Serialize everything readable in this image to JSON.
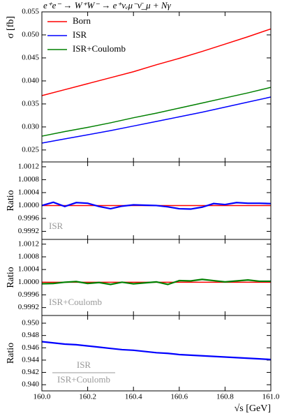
{
  "chart_data": [
    {
      "type": "line",
      "title": "e⁺e⁻ → W⁺W⁻ → e⁺νₑμ⁻ν̄_μ + Nγ",
      "ylabel": "σ [fb]",
      "x": [
        160.0,
        160.1,
        160.2,
        160.3,
        160.4,
        160.5,
        160.6,
        160.7,
        160.8,
        160.9,
        161.0
      ],
      "series": [
        {
          "name": "Born",
          "color": "#ff0000",
          "values": [
            0.0368,
            0.0381,
            0.0394,
            0.0407,
            0.042,
            0.0435,
            0.0449,
            0.0464,
            0.048,
            0.0496,
            0.0513
          ]
        },
        {
          "name": "ISR",
          "color": "#0000ff",
          "values": [
            0.0265,
            0.0274,
            0.0283,
            0.0292,
            0.0302,
            0.0312,
            0.0322,
            0.0332,
            0.0343,
            0.0354,
            0.0365
          ]
        },
        {
          "name": "ISR+Coulomb",
          "color": "#008000",
          "values": [
            0.028,
            0.029,
            0.0299,
            0.0309,
            0.032,
            0.033,
            0.0341,
            0.0352,
            0.0363,
            0.0374,
            0.0386
          ]
        }
      ],
      "xlim": [
        160.0,
        161.0
      ],
      "ylim": [
        0.0224,
        0.055
      ],
      "yticks": [
        0.025,
        {
          "value": 0.03,
          "label": "0.030"
        },
        0.035,
        {
          "value": 0.04,
          "label": "0.040"
        },
        0.045,
        {
          "value": 0.05,
          "label": "0.050"
        },
        0.055
      ],
      "legend": "upper left"
    },
    {
      "type": "line",
      "ylabel": "Ratio",
      "label": "ISR",
      "x": [
        160.0,
        160.05,
        160.1,
        160.15,
        160.2,
        160.25,
        160.3,
        160.35,
        160.4,
        160.45,
        160.5,
        160.55,
        160.6,
        160.65,
        160.7,
        160.75,
        160.8,
        160.85,
        160.9,
        160.95,
        161.0
      ],
      "series": [
        {
          "color": "#0000ff",
          "values": [
            1.0,
            1.0001,
            0.99997,
            1.00009,
            1.00007,
            0.99997,
            0.9999,
            0.99998,
            1.00002,
            1.00001,
            1.0,
            0.99996,
            0.9999,
            0.99989,
            0.99995,
            1.00006,
            1.00003,
            1.00009,
            1.00007,
            1.00007,
            1.00006
          ]
        }
      ],
      "reference_line": {
        "value": 1,
        "color": "#ff0000"
      },
      "xlim": [
        160.0,
        161.0
      ],
      "ylim": [
        0.99895,
        1.00135
      ],
      "yticks": [
        0.9992,
        0.9996,
        {
          "value": 1,
          "label": "1.0000"
        },
        1.0004,
        1.0008,
        1.0012
      ]
    },
    {
      "type": "line",
      "ylabel": "Ratio",
      "label": "ISR+Coulomb",
      "x": [
        160.0,
        160.05,
        160.1,
        160.15,
        160.2,
        160.25,
        160.3,
        160.35,
        160.4,
        160.45,
        160.5,
        160.55,
        160.6,
        160.65,
        160.7,
        160.75,
        160.8,
        160.85,
        160.9,
        160.95,
        161.0
      ],
      "series": [
        {
          "color": "#008000",
          "values": [
            0.99995,
            0.99996,
            1.0,
            1.00002,
            0.99996,
            0.99999,
            0.99993,
            1.0,
            0.99995,
            0.99998,
            1.00001,
            0.99993,
            1.00005,
            1.00004,
            1.00009,
            1.00005,
            1.00001,
            1.00004,
            1.00007,
            1.00003,
            1.00003
          ]
        }
      ],
      "reference_line": {
        "value": 1,
        "color": "#ff0000"
      },
      "xlim": [
        160.0,
        161.0
      ],
      "ylim": [
        0.99895,
        1.00135
      ],
      "yticks": [
        0.9992,
        0.9996,
        {
          "value": 1,
          "label": "1.0000"
        },
        1.0004,
        1.0008,
        1.0012
      ]
    },
    {
      "type": "line",
      "ylabel": "Ratio",
      "label_numerator": "ISR",
      "label_denominator": "ISR+Coulomb",
      "xlabel": "√s [GeV]",
      "x": [
        160.0,
        160.05,
        160.1,
        160.15,
        160.2,
        160.25,
        160.3,
        160.35,
        160.4,
        160.45,
        160.5,
        160.55,
        160.6,
        160.65,
        160.7,
        160.75,
        160.8,
        160.85,
        160.9,
        160.95,
        161.0
      ],
      "series": [
        {
          "color": "#0000ff",
          "values": [
            0.947,
            0.9468,
            0.9466,
            0.9465,
            0.9463,
            0.9461,
            0.9459,
            0.9457,
            0.9456,
            0.9454,
            0.9452,
            0.9451,
            0.9449,
            0.9448,
            0.9447,
            0.9446,
            0.9445,
            0.9444,
            0.9443,
            0.9442,
            0.9441
          ]
        }
      ],
      "xlim": [
        160.0,
        161.0
      ],
      "ylim": [
        0.939,
        0.95125
      ],
      "xticks": [
        {
          "value": 160.0,
          "label": "160.0"
        },
        160.2,
        160.4,
        160.6,
        160.8,
        {
          "value": 161.0,
          "label": "161.0"
        }
      ],
      "yticks": [
        {
          "value": 0.94,
          "label": "0.940"
        },
        0.942,
        0.944,
        0.946,
        0.948,
        {
          "value": 0.95,
          "label": "0.950"
        }
      ]
    }
  ]
}
